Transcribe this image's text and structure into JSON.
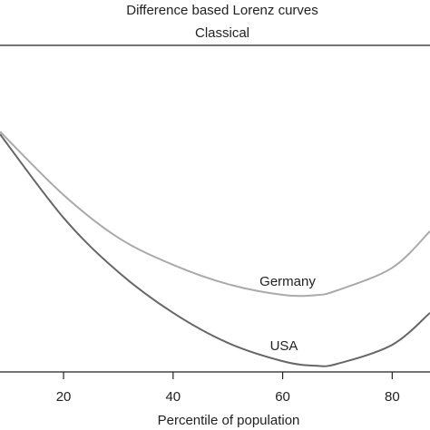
{
  "chart_data": {
    "type": "line",
    "title": "Difference based Lorenz curves",
    "panel_title": "Classical",
    "x_label": "Percentile of population",
    "x": [
      8.4,
      20,
      30,
      40,
      50,
      60,
      66,
      70,
      80,
      86.9
    ],
    "series": [
      {
        "name": "Germany",
        "color": "#aaaaaa",
        "values": [
          0.736,
          0.542,
          0.411,
          0.328,
          0.269,
          0.236,
          0.235,
          0.25,
          0.319,
          0.431
        ]
      },
      {
        "name": "USA",
        "color": "#666666",
        "values": [
          0.728,
          0.472,
          0.306,
          0.181,
          0.089,
          0.033,
          0.019,
          0.025,
          0.083,
          0.181
        ]
      }
    ],
    "xlim": [
      8.4,
      86.9
    ],
    "xticks": [
      20,
      40,
      60,
      80
    ],
    "ylim": [
      0,
      1
    ]
  }
}
